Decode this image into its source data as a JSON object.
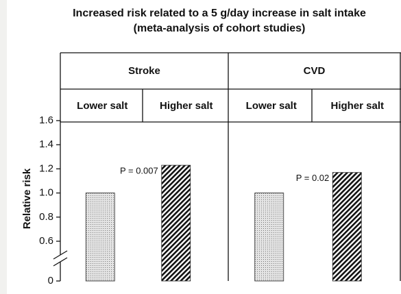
{
  "chart_data": {
    "type": "bar",
    "title": "Increased risk related to a 5 g/day increase in salt intake",
    "subtitle": "(meta-analysis of cohort studies)",
    "ylabel": "Relative risk",
    "groups": [
      {
        "name": "Stroke",
        "categories": [
          "Lower salt",
          "Higher salt"
        ],
        "values": [
          1.0,
          1.23
        ],
        "annotation": "P = 0.007"
      },
      {
        "name": "CVD",
        "categories": [
          "Lower salt",
          "Higher salt"
        ],
        "values": [
          1.0,
          1.17
        ],
        "annotation": "P = 0.02"
      }
    ],
    "patterns": [
      "dots",
      "hatch"
    ],
    "ylim": [
      0,
      1.6
    ],
    "axis_break": [
      0,
      0.6
    ],
    "yticks": [
      0,
      0.6,
      0.8,
      {
        "value": 1.0,
        "label": "1.0"
      },
      1.2,
      1.4,
      1.6
    ]
  }
}
